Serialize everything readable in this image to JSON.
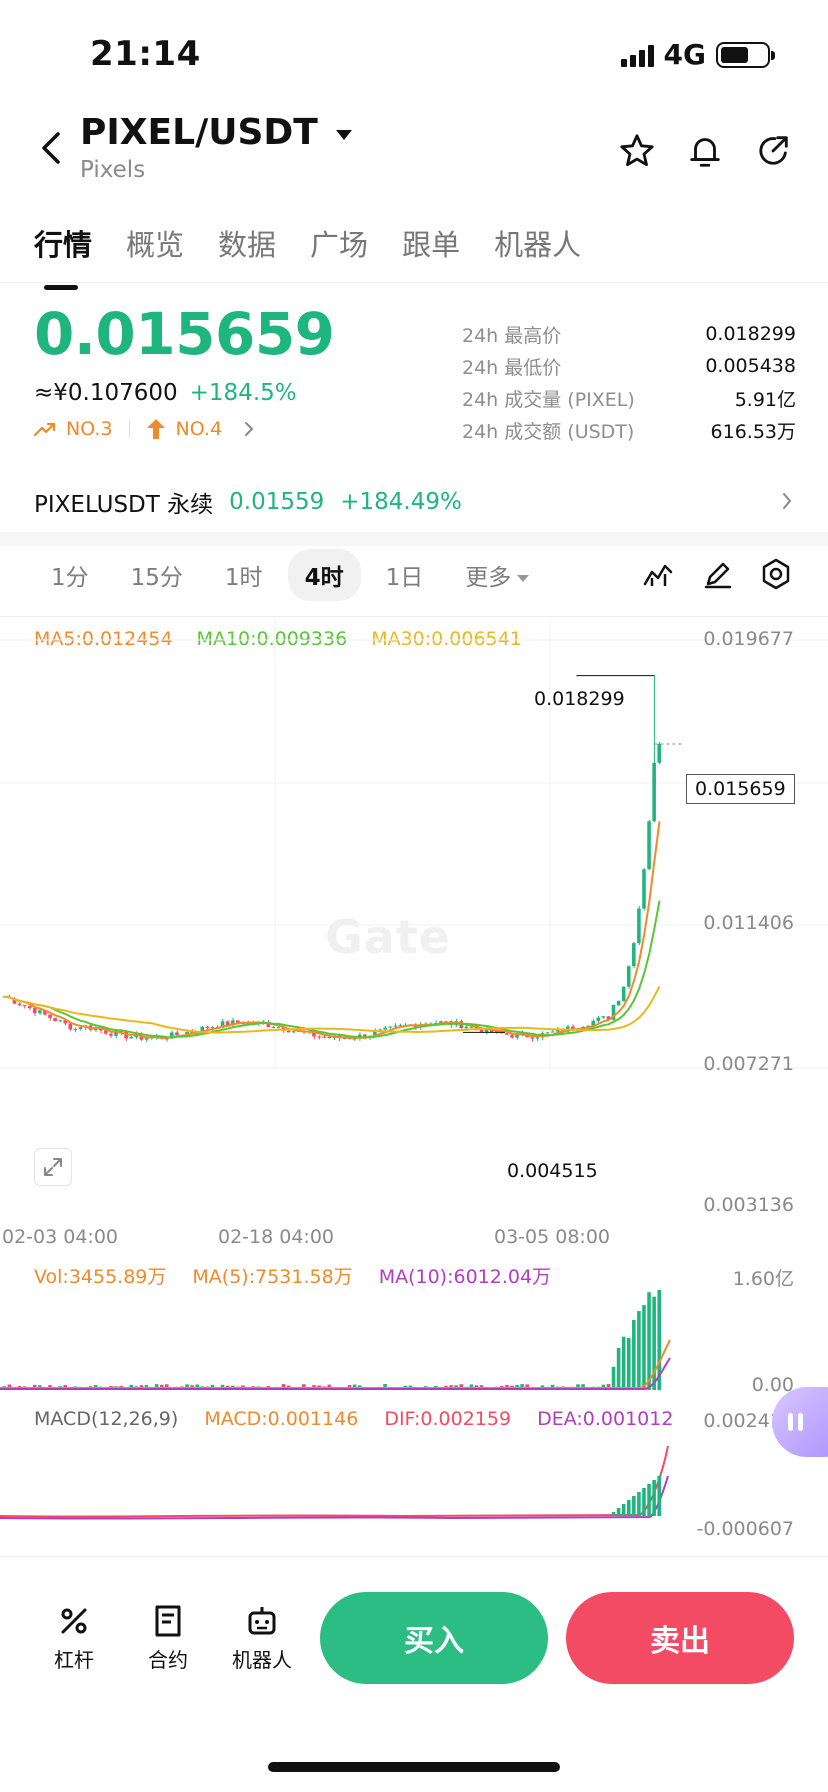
{
  "status_bar": {
    "time": "21:14",
    "network": "4G"
  },
  "header": {
    "pair": "PIXEL/USDT",
    "subtitle": "Pixels"
  },
  "tabs": [
    {
      "label": "行情",
      "active": true
    },
    {
      "label": "概览"
    },
    {
      "label": "数据"
    },
    {
      "label": "广场"
    },
    {
      "label": "跟单"
    },
    {
      "label": "机器人"
    }
  ],
  "ticker": {
    "price": "0.015659",
    "cny": "≈¥0.107600",
    "change": "+184.5%",
    "rank1": "NO.3",
    "rank2": "NO.4"
  },
  "stats": [
    {
      "label": "24h 最高价",
      "value": "0.018299"
    },
    {
      "label": "24h 最低价",
      "value": "0.005438"
    },
    {
      "label": "24h 成交量 (PIXEL)",
      "value": "5.91亿"
    },
    {
      "label": "24h 成交额 (USDT)",
      "value": "616.53万"
    }
  ],
  "perp": {
    "name": "PIXELUSDT 永续",
    "price": "0.01559",
    "change": "+184.49%"
  },
  "intervals": [
    {
      "label": "1分"
    },
    {
      "label": "15分"
    },
    {
      "label": "1时"
    },
    {
      "label": "4时",
      "active": true
    },
    {
      "label": "1日"
    },
    {
      "label": "更多"
    }
  ],
  "main_chart": {
    "ma5": "MA5:0.012454",
    "ma10": "MA10:0.009336",
    "ma30": "MA30:0.006541",
    "y_ticks": [
      "0.019677",
      "0.011406",
      "0.007271",
      "0.003136"
    ],
    "x_ticks": [
      "02-03 04:00",
      "02-18 04:00",
      "03-05 08:00"
    ],
    "high_label": "0.018299",
    "low_label": "0.004515",
    "current_label": "0.015659",
    "watermark": "Gate"
  },
  "volume": {
    "vol": "Vol:3455.89万",
    "ma5": "MA(5):7531.58万",
    "ma10": "MA(10):6012.04万",
    "y_top": "1.60亿",
    "y_bottom": "0.00"
  },
  "macd": {
    "title": "MACD(12,26,9)",
    "macd": "MACD:0.001146",
    "dif": "DIF:0.002159",
    "dea": "DEA:0.001012",
    "y_top": "0.002411",
    "y_bottom": "-0.000607"
  },
  "bottom": {
    "leverage": "杠杆",
    "contract": "合约",
    "robot": "机器人",
    "buy": "买入",
    "sell": "卖出"
  },
  "colors": {
    "up": "#1fb57e",
    "down": "#f34b63",
    "ma5": "#f08a2a",
    "ma10": "#57c735",
    "ma30": "#e8b91e",
    "dea": "#b43cc4"
  },
  "chart_data": {
    "type": "candlestick",
    "x": [
      "02-03 04:00",
      "02-18 04:00",
      "03-05 08:00"
    ],
    "ylim": [
      0.003136,
      0.019677
    ],
    "high": 0.018299,
    "low": 0.004515,
    "last": 0.015659
  }
}
